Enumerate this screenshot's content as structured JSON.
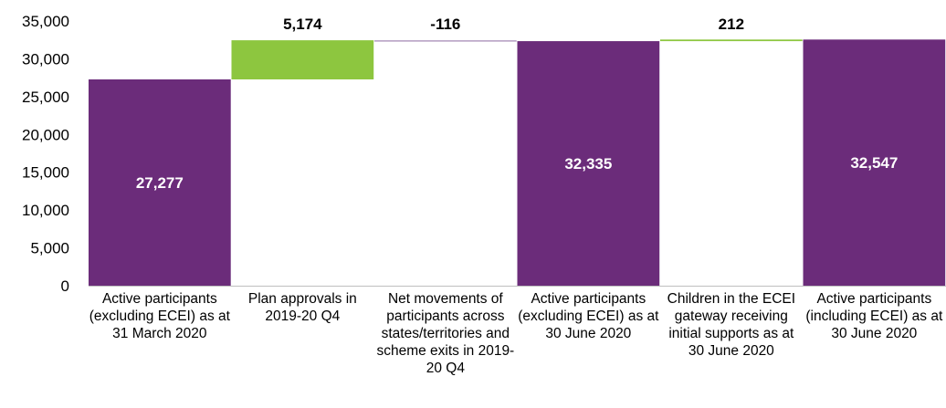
{
  "chart_data": {
    "type": "waterfall",
    "categories": [
      "Active participants (excluding ECEI) as at 31 March 2020",
      "Plan approvals in 2019-20 Q4",
      "Net movements of participants across states/territories and scheme exits in 2019-20 Q4",
      "Active participants (excluding ECEI) as at 30 June 2020",
      "Children in the ECEI gateway receiving initial supports as at 30 June 2020",
      "Active participants (including ECEI) as at 30 June 2020"
    ],
    "steps": [
      {
        "kind": "total",
        "value": 27277,
        "label": "27,277"
      },
      {
        "kind": "delta",
        "value": 5174,
        "label": "5,174"
      },
      {
        "kind": "delta",
        "value": -116,
        "label": "-116"
      },
      {
        "kind": "total",
        "value": 32335,
        "label": "32,335"
      },
      {
        "kind": "delta",
        "value": 212,
        "label": "212"
      },
      {
        "kind": "total",
        "value": 32547,
        "label": "32,547"
      }
    ],
    "yticks": [
      0,
      5000,
      10000,
      15000,
      20000,
      25000,
      30000,
      35000
    ],
    "ytick_labels": [
      "0",
      "5,000",
      "10,000",
      "15,000",
      "20,000",
      "25,000",
      "30,000",
      "35,000"
    ],
    "ylim": [
      0,
      35000
    ],
    "grid": false,
    "colors": {
      "total": "#6B2C7A",
      "increase": "#8DC63F",
      "decrease": "#B39BC0",
      "total_label": "#ffffff",
      "delta_label": "#000000",
      "axis": "#BFBFBF"
    }
  }
}
